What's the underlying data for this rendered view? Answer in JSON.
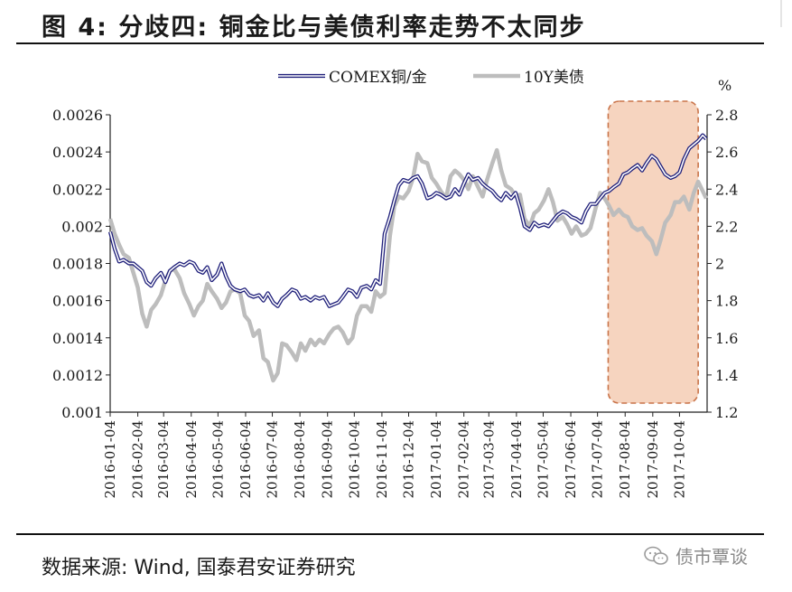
{
  "header": {
    "title": "图 4: 分歧四: 铜金比与美债利率走势不太同步"
  },
  "footer": {
    "source": "数据来源: Wind, 国泰君安证券研究",
    "watermark": "债市覃谈"
  },
  "chart_data": {
    "type": "line",
    "x_labels": [
      "2016-01-04",
      "2016-02-04",
      "2016-03-04",
      "2016-04-04",
      "2016-05-04",
      "2016-06-04",
      "2016-07-04",
      "2016-08-04",
      "2016-09-04",
      "2016-10-04",
      "2016-11-04",
      "2016-12-04",
      "2017-01-04",
      "2017-02-04",
      "2017-03-04",
      "2017-04-04",
      "2017-05-04",
      "2017-06-04",
      "2017-07-04",
      "2017-08-04",
      "2017-09-04",
      "2017-10-04"
    ],
    "y_left": {
      "range": [
        0.001,
        0.0026
      ],
      "ticks": [
        "0.001",
        "0.0012",
        "0.0014",
        "0.0016",
        "0.0018",
        "0.002",
        "0.0022",
        "0.0024",
        "0.0026"
      ]
    },
    "y_right": {
      "label": "%",
      "range": [
        1.2,
        2.8
      ],
      "ticks": [
        "1.2",
        "1.4",
        "1.6",
        "1.8",
        "2",
        "2.2",
        "2.4",
        "2.6",
        "2.8"
      ]
    },
    "legend_position": "top-center",
    "highlight_region": {
      "from": "2017-07-20",
      "to": "2017-10-25"
    },
    "series": [
      {
        "name": "COMEX铜/金",
        "axis": "left",
        "color": "#1f1f7a",
        "style": "double-line",
        "points": [
          [
            "2016-01-04",
            0.00197
          ],
          [
            "2016-01-09",
            0.00188
          ],
          [
            "2016-01-14",
            0.00181
          ],
          [
            "2016-01-19",
            0.00182
          ],
          [
            "2016-01-25",
            0.0018
          ],
          [
            "2016-01-30",
            0.0018
          ],
          [
            "2016-02-04",
            0.00178
          ],
          [
            "2016-02-09",
            0.00176
          ],
          [
            "2016-02-14",
            0.0017
          ],
          [
            "2016-02-19",
            0.00168
          ],
          [
            "2016-02-24",
            0.00172
          ],
          [
            "2016-03-01",
            0.00175
          ],
          [
            "2016-03-06",
            0.0017
          ],
          [
            "2016-03-11",
            0.00176
          ],
          [
            "2016-03-16",
            0.00178
          ],
          [
            "2016-03-22",
            0.0018
          ],
          [
            "2016-03-27",
            0.00179
          ],
          [
            "2016-04-02",
            0.00181
          ],
          [
            "2016-04-07",
            0.0018
          ],
          [
            "2016-04-12",
            0.00176
          ],
          [
            "2016-04-17",
            0.00175
          ],
          [
            "2016-04-22",
            0.00178
          ],
          [
            "2016-04-27",
            0.00171
          ],
          [
            "2016-05-03",
            0.00174
          ],
          [
            "2016-05-08",
            0.0018
          ],
          [
            "2016-05-13",
            0.00173
          ],
          [
            "2016-05-18",
            0.00168
          ],
          [
            "2016-05-23",
            0.00166
          ],
          [
            "2016-05-29",
            0.00165
          ],
          [
            "2016-06-03",
            0.00166
          ],
          [
            "2016-06-08",
            0.00163
          ],
          [
            "2016-06-13",
            0.00162
          ],
          [
            "2016-06-19",
            0.00163
          ],
          [
            "2016-06-24",
            0.0016
          ],
          [
            "2016-06-29",
            0.00164
          ],
          [
            "2016-07-05",
            0.00159
          ],
          [
            "2016-07-10",
            0.00157
          ],
          [
            "2016-07-15",
            0.00161
          ],
          [
            "2016-07-20",
            0.00163
          ],
          [
            "2016-07-26",
            0.00166
          ],
          [
            "2016-07-31",
            0.00165
          ],
          [
            "2016-08-05",
            0.00161
          ],
          [
            "2016-08-10",
            0.00162
          ],
          [
            "2016-08-16",
            0.0016
          ],
          [
            "2016-08-21",
            0.00162
          ],
          [
            "2016-08-26",
            0.00161
          ],
          [
            "2016-08-31",
            0.00162
          ],
          [
            "2016-09-06",
            0.00157
          ],
          [
            "2016-09-11",
            0.00158
          ],
          [
            "2016-09-16",
            0.00159
          ],
          [
            "2016-09-21",
            0.00162
          ],
          [
            "2016-09-27",
            0.00166
          ],
          [
            "2016-10-02",
            0.00165
          ],
          [
            "2016-10-07",
            0.00162
          ],
          [
            "2016-10-12",
            0.00167
          ],
          [
            "2016-10-18",
            0.00168
          ],
          [
            "2016-10-23",
            0.00166
          ],
          [
            "2016-10-28",
            0.00171
          ],
          [
            "2016-11-02",
            0.00169
          ],
          [
            "2016-11-07",
            0.00196
          ],
          [
            "2016-11-13",
            0.00205
          ],
          [
            "2016-11-18",
            0.00214
          ],
          [
            "2016-11-23",
            0.00222
          ],
          [
            "2016-11-28",
            0.00225
          ],
          [
            "2016-12-04",
            0.00224
          ],
          [
            "2016-12-09",
            0.00226
          ],
          [
            "2016-12-14",
            0.00227
          ],
          [
            "2016-12-19",
            0.00223
          ],
          [
            "2016-12-25",
            0.00215
          ],
          [
            "2016-12-30",
            0.00216
          ],
          [
            "2017-01-04",
            0.00218
          ],
          [
            "2017-01-09",
            0.00217
          ],
          [
            "2017-01-15",
            0.00215
          ],
          [
            "2017-01-20",
            0.00216
          ],
          [
            "2017-01-25",
            0.0022
          ],
          [
            "2017-01-30",
            0.00217
          ],
          [
            "2017-02-04",
            0.00223
          ],
          [
            "2017-02-09",
            0.00228
          ],
          [
            "2017-02-14",
            0.00225
          ],
          [
            "2017-02-20",
            0.00226
          ],
          [
            "2017-02-25",
            0.00223
          ],
          [
            "2017-03-02",
            0.00221
          ],
          [
            "2017-03-08",
            0.00219
          ],
          [
            "2017-03-13",
            0.00216
          ],
          [
            "2017-03-18",
            0.00214
          ],
          [
            "2017-03-23",
            0.00218
          ],
          [
            "2017-03-29",
            0.00215
          ],
          [
            "2017-04-03",
            0.00218
          ],
          [
            "2017-04-08",
            0.0021
          ],
          [
            "2017-04-13",
            0.002
          ],
          [
            "2017-04-19",
            0.00198
          ],
          [
            "2017-04-24",
            0.00202
          ],
          [
            "2017-04-29",
            0.002
          ],
          [
            "2017-05-05",
            0.00201
          ],
          [
            "2017-05-10",
            0.002
          ],
          [
            "2017-05-15",
            0.00203
          ],
          [
            "2017-05-20",
            0.00206
          ],
          [
            "2017-05-26",
            0.00208
          ],
          [
            "2017-05-31",
            0.00207
          ],
          [
            "2017-06-05",
            0.00205
          ],
          [
            "2017-06-10",
            0.00204
          ],
          [
            "2017-06-16",
            0.00202
          ],
          [
            "2017-06-21",
            0.00208
          ],
          [
            "2017-06-26",
            0.00212
          ],
          [
            "2017-07-02",
            0.00212
          ],
          [
            "2017-07-07",
            0.00215
          ],
          [
            "2017-07-12",
            0.00218
          ],
          [
            "2017-07-17",
            0.00219
          ],
          [
            "2017-07-22",
            0.00221
          ],
          [
            "2017-07-28",
            0.00223
          ],
          [
            "2017-08-02",
            0.00228
          ],
          [
            "2017-08-07",
            0.00229
          ],
          [
            "2017-08-12",
            0.00231
          ],
          [
            "2017-08-18",
            0.00233
          ],
          [
            "2017-08-23",
            0.0023
          ],
          [
            "2017-08-28",
            0.00234
          ],
          [
            "2017-09-03",
            0.00238
          ],
          [
            "2017-09-08",
            0.00236
          ],
          [
            "2017-09-13",
            0.00232
          ],
          [
            "2017-09-18",
            0.00228
          ],
          [
            "2017-09-24",
            0.00226
          ],
          [
            "2017-09-29",
            0.00227
          ],
          [
            "2017-10-04",
            0.00229
          ],
          [
            "2017-10-09",
            0.00236
          ],
          [
            "2017-10-15",
            0.00242
          ],
          [
            "2017-10-20",
            0.00244
          ],
          [
            "2017-10-25",
            0.00246
          ],
          [
            "2017-10-30",
            0.00249
          ],
          [
            "2017-11-03",
            0.00247
          ]
        ]
      },
      {
        "name": "10Y美债",
        "axis": "right",
        "color": "#bdbdbd",
        "style": "thick-line",
        "points": [
          [
            "2016-01-04",
            2.24
          ],
          [
            "2016-01-09",
            2.16
          ],
          [
            "2016-01-14",
            2.1
          ],
          [
            "2016-01-19",
            2.05
          ],
          [
            "2016-01-25",
            2.03
          ],
          [
            "2016-01-30",
            1.95
          ],
          [
            "2016-02-04",
            1.87
          ],
          [
            "2016-02-09",
            1.73
          ],
          [
            "2016-02-14",
            1.66
          ],
          [
            "2016-02-19",
            1.75
          ],
          [
            "2016-02-24",
            1.78
          ],
          [
            "2016-03-01",
            1.83
          ],
          [
            "2016-03-06",
            1.91
          ],
          [
            "2016-03-11",
            1.96
          ],
          [
            "2016-03-16",
            1.97
          ],
          [
            "2016-03-22",
            1.92
          ],
          [
            "2016-03-27",
            1.84
          ],
          [
            "2016-04-02",
            1.78
          ],
          [
            "2016-04-07",
            1.72
          ],
          [
            "2016-04-12",
            1.77
          ],
          [
            "2016-04-17",
            1.8
          ],
          [
            "2016-04-22",
            1.89
          ],
          [
            "2016-04-27",
            1.85
          ],
          [
            "2016-05-03",
            1.81
          ],
          [
            "2016-05-08",
            1.76
          ],
          [
            "2016-05-13",
            1.79
          ],
          [
            "2016-05-18",
            1.85
          ],
          [
            "2016-05-23",
            1.86
          ],
          [
            "2016-05-29",
            1.84
          ],
          [
            "2016-06-03",
            1.72
          ],
          [
            "2016-06-08",
            1.69
          ],
          [
            "2016-06-13",
            1.61
          ],
          [
            "2016-06-19",
            1.64
          ],
          [
            "2016-06-24",
            1.49
          ],
          [
            "2016-06-29",
            1.47
          ],
          [
            "2016-07-05",
            1.37
          ],
          [
            "2016-07-10",
            1.41
          ],
          [
            "2016-07-15",
            1.57
          ],
          [
            "2016-07-20",
            1.56
          ],
          [
            "2016-07-26",
            1.52
          ],
          [
            "2016-07-31",
            1.48
          ],
          [
            "2016-08-05",
            1.57
          ],
          [
            "2016-08-10",
            1.53
          ],
          [
            "2016-08-16",
            1.59
          ],
          [
            "2016-08-21",
            1.56
          ],
          [
            "2016-08-26",
            1.59
          ],
          [
            "2016-08-31",
            1.57
          ],
          [
            "2016-09-06",
            1.62
          ],
          [
            "2016-09-11",
            1.65
          ],
          [
            "2016-09-16",
            1.66
          ],
          [
            "2016-09-21",
            1.63
          ],
          [
            "2016-09-27",
            1.57
          ],
          [
            "2016-10-02",
            1.6
          ],
          [
            "2016-10-07",
            1.72
          ],
          [
            "2016-10-12",
            1.77
          ],
          [
            "2016-10-18",
            1.77
          ],
          [
            "2016-10-23",
            1.74
          ],
          [
            "2016-10-28",
            1.85
          ],
          [
            "2016-11-02",
            1.82
          ],
          [
            "2016-11-07",
            1.84
          ],
          [
            "2016-11-13",
            2.15
          ],
          [
            "2016-11-18",
            2.31
          ],
          [
            "2016-11-23",
            2.36
          ],
          [
            "2016-11-28",
            2.35
          ],
          [
            "2016-12-04",
            2.39
          ],
          [
            "2016-12-09",
            2.46
          ],
          [
            "2016-12-14",
            2.59
          ],
          [
            "2016-12-19",
            2.55
          ],
          [
            "2016-12-25",
            2.54
          ],
          [
            "2016-12-30",
            2.46
          ],
          [
            "2017-01-04",
            2.43
          ],
          [
            "2017-01-09",
            2.39
          ],
          [
            "2017-01-15",
            2.35
          ],
          [
            "2017-01-20",
            2.47
          ],
          [
            "2017-01-25",
            2.5
          ],
          [
            "2017-01-30",
            2.48
          ],
          [
            "2017-02-04",
            2.45
          ],
          [
            "2017-02-09",
            2.4
          ],
          [
            "2017-02-14",
            2.47
          ],
          [
            "2017-02-20",
            2.41
          ],
          [
            "2017-02-25",
            2.36
          ],
          [
            "2017-03-02",
            2.45
          ],
          [
            "2017-03-08",
            2.54
          ],
          [
            "2017-03-13",
            2.61
          ],
          [
            "2017-03-18",
            2.5
          ],
          [
            "2017-03-23",
            2.42
          ],
          [
            "2017-03-29",
            2.4
          ],
          [
            "2017-04-03",
            2.36
          ],
          [
            "2017-04-08",
            2.37
          ],
          [
            "2017-04-13",
            2.24
          ],
          [
            "2017-04-19",
            2.2
          ],
          [
            "2017-04-24",
            2.27
          ],
          [
            "2017-04-29",
            2.29
          ],
          [
            "2017-05-05",
            2.34
          ],
          [
            "2017-05-10",
            2.4
          ],
          [
            "2017-05-15",
            2.33
          ],
          [
            "2017-05-20",
            2.23
          ],
          [
            "2017-05-26",
            2.25
          ],
          [
            "2017-05-31",
            2.21
          ],
          [
            "2017-06-05",
            2.16
          ],
          [
            "2017-06-10",
            2.2
          ],
          [
            "2017-06-16",
            2.15
          ],
          [
            "2017-06-21",
            2.16
          ],
          [
            "2017-06-26",
            2.19
          ],
          [
            "2017-07-02",
            2.3
          ],
          [
            "2017-07-07",
            2.38
          ],
          [
            "2017-07-12",
            2.35
          ],
          [
            "2017-07-17",
            2.31
          ],
          [
            "2017-07-22",
            2.26
          ],
          [
            "2017-07-28",
            2.29
          ],
          [
            "2017-08-02",
            2.26
          ],
          [
            "2017-08-07",
            2.25
          ],
          [
            "2017-08-12",
            2.2
          ],
          [
            "2017-08-18",
            2.18
          ],
          [
            "2017-08-23",
            2.19
          ],
          [
            "2017-08-28",
            2.15
          ],
          [
            "2017-09-03",
            2.12
          ],
          [
            "2017-09-08",
            2.05
          ],
          [
            "2017-09-13",
            2.13
          ],
          [
            "2017-09-18",
            2.22
          ],
          [
            "2017-09-24",
            2.26
          ],
          [
            "2017-09-29",
            2.33
          ],
          [
            "2017-10-04",
            2.33
          ],
          [
            "2017-10-09",
            2.36
          ],
          [
            "2017-10-15",
            2.29
          ],
          [
            "2017-10-20",
            2.38
          ],
          [
            "2017-10-25",
            2.44
          ],
          [
            "2017-10-30",
            2.39
          ],
          [
            "2017-11-03",
            2.35
          ]
        ]
      }
    ]
  }
}
